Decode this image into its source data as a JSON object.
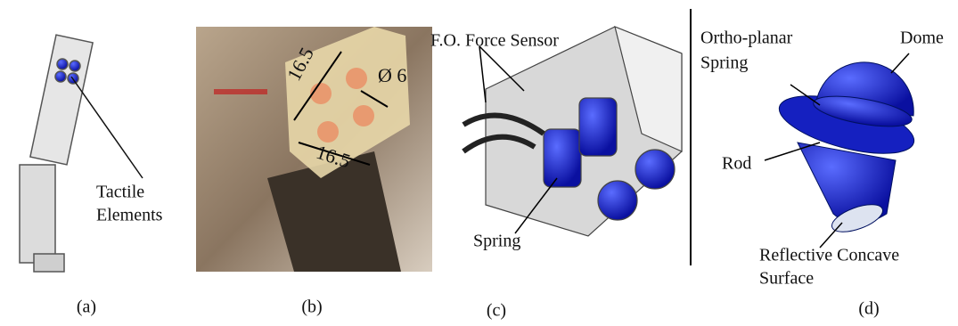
{
  "panels": [
    {
      "label": "(a)",
      "annotations": [
        "Tactile",
        "Elements"
      ]
    },
    {
      "label": "(b)",
      "dimensions": [
        "16.5",
        "16.5",
        "Ø 6"
      ]
    },
    {
      "label": "(c)",
      "annotations": [
        "F.O. Force Sensor",
        "Spring"
      ]
    },
    {
      "label": "(d)",
      "annotations": [
        "Ortho-planar",
        "Spring",
        "Dome",
        "Rod",
        "Reflective Concave",
        "Surface"
      ]
    }
  ]
}
